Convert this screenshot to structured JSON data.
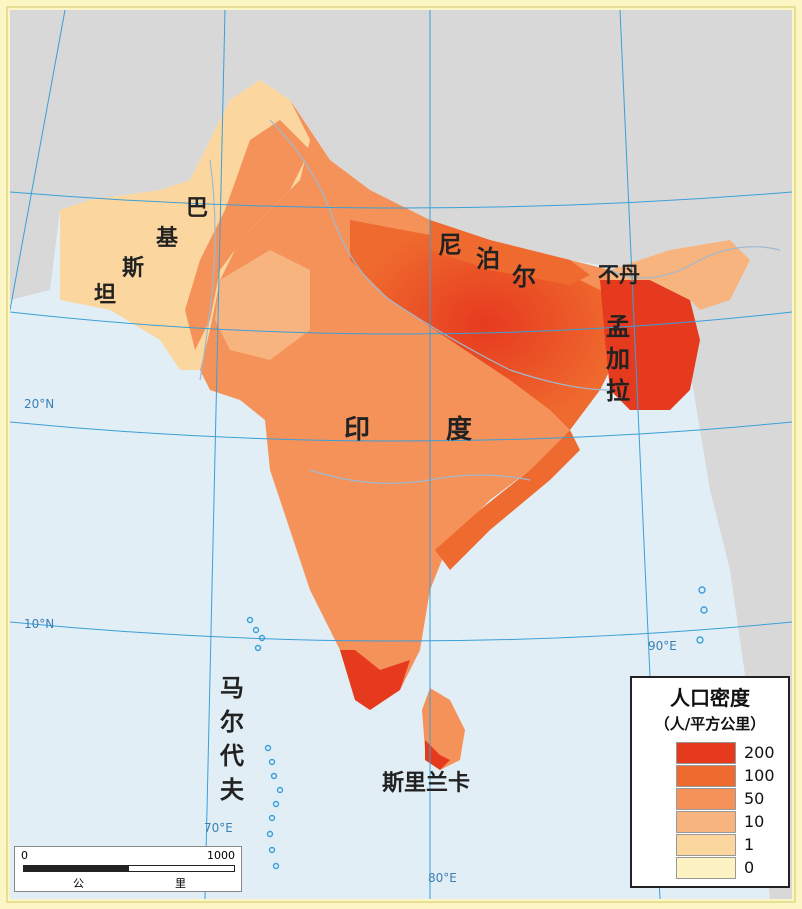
{
  "labels": {
    "pakistan": [
      "巴",
      "基",
      "斯",
      "坦"
    ],
    "nepal": [
      "尼",
      "泊",
      "尔"
    ],
    "bhutan": "不丹",
    "bangladesh": [
      "孟",
      "加",
      "拉"
    ],
    "india": [
      "印",
      "度"
    ],
    "srilanka": "斯里兰卡",
    "maldives": [
      "马",
      "尔",
      "代",
      "夫"
    ]
  },
  "graticule": {
    "lat_20": "20°N",
    "lat_10": "10°N",
    "lon_70": "70°E",
    "lon_80": "80°E",
    "lon_90": "90°E"
  },
  "legend": {
    "title": "人口密度",
    "unit": "（人/平方公里）",
    "classes": [
      {
        "value": "200",
        "color": "#e63a1f"
      },
      {
        "value": "100",
        "color": "#ef6a2e"
      },
      {
        "value": "50",
        "color": "#f4925a"
      },
      {
        "value": "10",
        "color": "#f7b47f"
      },
      {
        "value": "1",
        "color": "#fbd79f"
      },
      {
        "value": "0",
        "color": "#fdf2c2"
      }
    ]
  },
  "scale_bar": {
    "start": "0",
    "end": "1000",
    "unit_left": "公",
    "unit_right": "里"
  },
  "colors": {
    "sea": "#e2eef5",
    "foreign_land": "#d8d8d8",
    "graticule": "#3a9fd8",
    "river": "#9fb9d1"
  }
}
